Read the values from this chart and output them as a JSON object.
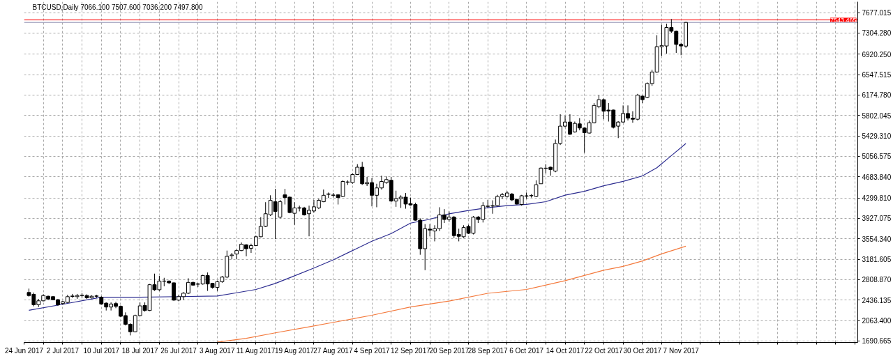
{
  "chart_data": {
    "type": "candlestick",
    "title": "BTCUSD,Daily 7066.100 7507.600 7036.200 7497.800",
    "x": [
      "2017-06-25",
      "2017-06-26",
      "2017-06-27",
      "2017-06-28",
      "2017-06-29",
      "2017-06-30",
      "2017-07-01",
      "2017-07-02",
      "2017-07-03",
      "2017-07-04",
      "2017-07-05",
      "2017-07-06",
      "2017-07-07",
      "2017-07-08",
      "2017-07-09",
      "2017-07-10",
      "2017-07-11",
      "2017-07-12",
      "2017-07-13",
      "2017-07-14",
      "2017-07-15",
      "2017-07-16",
      "2017-07-17",
      "2017-07-18",
      "2017-07-19",
      "2017-07-20",
      "2017-07-21",
      "2017-07-22",
      "2017-07-23",
      "2017-07-24",
      "2017-07-25",
      "2017-07-26",
      "2017-07-27",
      "2017-07-28",
      "2017-07-29",
      "2017-07-30",
      "2017-07-31",
      "2017-08-01",
      "2017-08-02",
      "2017-08-03",
      "2017-08-04",
      "2017-08-05",
      "2017-08-06",
      "2017-08-07",
      "2017-08-08",
      "2017-08-09",
      "2017-08-10",
      "2017-08-11",
      "2017-08-12",
      "2017-08-13",
      "2017-08-14",
      "2017-08-15",
      "2017-08-16",
      "2017-08-17",
      "2017-08-18",
      "2017-08-19",
      "2017-08-20",
      "2017-08-21",
      "2017-08-22",
      "2017-08-23",
      "2017-08-24",
      "2017-08-25",
      "2017-08-26",
      "2017-08-27",
      "2017-08-28",
      "2017-08-29",
      "2017-08-30",
      "2017-08-31",
      "2017-09-01",
      "2017-09-02",
      "2017-09-03",
      "2017-09-04",
      "2017-09-05",
      "2017-09-06",
      "2017-09-07",
      "2017-09-08",
      "2017-09-09",
      "2017-09-10",
      "2017-09-11",
      "2017-09-12",
      "2017-09-13",
      "2017-09-14",
      "2017-09-15",
      "2017-09-16",
      "2017-09-17",
      "2017-09-18",
      "2017-09-19",
      "2017-09-20",
      "2017-09-21",
      "2017-09-22",
      "2017-09-23",
      "2017-09-24",
      "2017-09-25",
      "2017-09-26",
      "2017-09-27",
      "2017-09-28",
      "2017-09-29",
      "2017-09-30",
      "2017-10-01",
      "2017-10-02",
      "2017-10-03",
      "2017-10-04",
      "2017-10-05",
      "2017-10-06",
      "2017-10-07",
      "2017-10-08",
      "2017-10-09",
      "2017-10-10",
      "2017-10-11",
      "2017-10-12",
      "2017-10-13",
      "2017-10-14",
      "2017-10-15",
      "2017-10-16",
      "2017-10-17",
      "2017-10-18",
      "2017-10-19",
      "2017-10-20",
      "2017-10-21",
      "2017-10-22",
      "2017-10-23",
      "2017-10-24",
      "2017-10-25",
      "2017-10-26",
      "2017-10-27",
      "2017-10-28",
      "2017-10-29",
      "2017-10-30",
      "2017-10-31",
      "2017-11-01",
      "2017-11-02",
      "2017-11-03",
      "2017-11-04",
      "2017-11-05",
      "2017-11-06",
      "2017-11-07",
      "2017-11-08"
    ],
    "ohlc": [
      [
        2575,
        2646,
        2499,
        2520
      ],
      [
        2541,
        2574,
        2323,
        2352
      ],
      [
        2352,
        2457,
        2310,
        2423
      ],
      [
        2423,
        2541,
        2415,
        2520
      ],
      [
        2507,
        2516,
        2436,
        2457
      ],
      [
        2499,
        2507,
        2436,
        2444
      ],
      [
        2444,
        2457,
        2331,
        2352
      ],
      [
        2373,
        2423,
        2352,
        2407
      ],
      [
        2394,
        2532,
        2385,
        2499
      ],
      [
        2503,
        2549,
        2478,
        2511
      ],
      [
        2499,
        2549,
        2457,
        2520
      ],
      [
        2520,
        2562,
        2478,
        2524
      ],
      [
        2520,
        2541,
        2457,
        2478
      ],
      [
        2478,
        2524,
        2465,
        2507
      ],
      [
        2512,
        2532,
        2478,
        2507
      ],
      [
        2490,
        2507,
        2352,
        2365
      ],
      [
        2381,
        2394,
        2247,
        2310
      ],
      [
        2310,
        2394,
        2247,
        2365
      ],
      [
        2373,
        2407,
        2289,
        2323
      ],
      [
        2323,
        2339,
        2129,
        2142
      ],
      [
        2154,
        2213,
        1974,
        1995
      ],
      [
        1995,
        2016,
        1793,
        1860
      ],
      [
        1860,
        2171,
        1848,
        2154
      ],
      [
        2154,
        2394,
        2142,
        2331
      ],
      [
        2339,
        2394,
        2226,
        2247
      ],
      [
        2247,
        2730,
        2238,
        2717
      ],
      [
        2717,
        2919,
        2604,
        2625
      ],
      [
        2625,
        2877,
        2604,
        2784
      ],
      [
        2784,
        2843,
        2688,
        2780
      ],
      [
        2784,
        2793,
        2730,
        2751
      ],
      [
        2751,
        2759,
        2423,
        2436
      ],
      [
        2436,
        2532,
        2415,
        2499
      ],
      [
        2499,
        2583,
        2436,
        2562
      ],
      [
        2562,
        2835,
        2549,
        2759
      ],
      [
        2759,
        2772,
        2700,
        2709
      ],
      [
        2730,
        2751,
        2675,
        2726
      ],
      [
        2730,
        2898,
        2717,
        2885
      ],
      [
        2885,
        2940,
        2604,
        2730
      ],
      [
        2742,
        2751,
        2646,
        2667
      ],
      [
        2667,
        2793,
        2604,
        2772
      ],
      [
        2772,
        2877,
        2751,
        2856
      ],
      [
        2856,
        3339,
        2835,
        3234
      ],
      [
        3247,
        3297,
        3179,
        3259
      ],
      [
        3276,
        3360,
        3179,
        3339
      ],
      [
        3339,
        3486,
        3330,
        3456
      ],
      [
        3444,
        3456,
        3234,
        3373
      ],
      [
        3381,
        3465,
        3297,
        3431
      ],
      [
        3431,
        3612,
        3423,
        3591
      ],
      [
        3591,
        3948,
        3583,
        3780
      ],
      [
        3780,
        4221,
        3767,
        4011
      ],
      [
        3990,
        4347,
        3969,
        4254
      ],
      [
        4229,
        4464,
        3549,
        4053
      ],
      [
        3948,
        4263,
        3927,
        4229
      ],
      [
        4355,
        4464,
        4179,
        4305
      ],
      [
        4313,
        4326,
        4019,
        4032
      ],
      [
        4019,
        4221,
        3809,
        4116
      ],
      [
        4120,
        4158,
        4053,
        4112
      ],
      [
        4116,
        4137,
        3977,
        3990
      ],
      [
        4011,
        4158,
        3599,
        4074
      ],
      [
        4061,
        4263,
        4032,
        4137
      ],
      [
        4116,
        4284,
        4095,
        4255
      ],
      [
        4229,
        4452,
        4221,
        4347
      ],
      [
        4364,
        4397,
        4297,
        4372
      ],
      [
        4347,
        4389,
        4305,
        4351
      ],
      [
        4355,
        4368,
        4179,
        4305
      ],
      [
        4326,
        4620,
        4313,
        4599
      ],
      [
        4586,
        4620,
        4536,
        4590
      ],
      [
        4578,
        4746,
        4557,
        4725
      ],
      [
        4725,
        4914,
        4717,
        4859
      ],
      [
        4859,
        4956,
        4536,
        4557
      ],
      [
        4557,
        4683,
        4515,
        4578
      ],
      [
        4578,
        4662,
        4145,
        4347
      ],
      [
        4347,
        4557,
        4129,
        4481
      ],
      [
        4481,
        4704,
        4452,
        4599
      ],
      [
        4578,
        4691,
        4557,
        4633
      ],
      [
        4620,
        4683,
        4221,
        4242
      ],
      [
        4242,
        4431,
        4137,
        4284
      ],
      [
        4284,
        4347,
        4116,
        4313
      ],
      [
        4313,
        4389,
        4103,
        4187
      ],
      [
        4196,
        4305,
        4158,
        4171
      ],
      [
        4179,
        4213,
        3885,
        3893
      ],
      [
        3893,
        3927,
        3263,
        3373
      ],
      [
        3373,
        3822,
        2982,
        3738
      ],
      [
        3730,
        3822,
        3599,
        3713
      ],
      [
        3696,
        3801,
        3507,
        3738
      ],
      [
        3738,
        4129,
        3696,
        3990
      ],
      [
        3990,
        4095,
        3843,
        3906
      ],
      [
        3906,
        4053,
        3864,
        3948
      ],
      [
        3948,
        3969,
        3570,
        3612
      ],
      [
        3633,
        3738,
        3507,
        3599
      ],
      [
        3591,
        3801,
        3570,
        3759
      ],
      [
        3780,
        3809,
        3641,
        3654
      ],
      [
        3654,
        3969,
        3633,
        3948
      ],
      [
        3948,
        3969,
        3843,
        3906
      ],
      [
        3906,
        4221,
        3851,
        4158
      ],
      [
        4145,
        4263,
        4116,
        4150
      ],
      [
        4158,
        4255,
        4011,
        4150
      ],
      [
        4158,
        4355,
        4145,
        4326
      ],
      [
        4326,
        4389,
        4280,
        4360
      ],
      [
        4326,
        4422,
        4305,
        4389
      ],
      [
        4368,
        4389,
        4242,
        4263
      ],
      [
        4271,
        4284,
        4179,
        4187
      ],
      [
        4179,
        4355,
        4158,
        4339
      ],
      [
        4330,
        4397,
        4284,
        4338
      ],
      [
        4338,
        4368,
        4305,
        4343
      ],
      [
        4326,
        4620,
        4313,
        4540
      ],
      [
        4557,
        4859,
        4557,
        4842
      ],
      [
        4842,
        4914,
        4746,
        4838
      ],
      [
        4859,
        4872,
        4704,
        4817
      ],
      [
        4788,
        5363,
        4767,
        5292
      ],
      [
        5292,
        5825,
        5263,
        5607
      ],
      [
        5607,
        5796,
        5586,
        5682
      ],
      [
        5682,
        5825,
        5447,
        5460
      ],
      [
        5502,
        5691,
        5489,
        5657
      ],
      [
        5649,
        5754,
        5531,
        5573
      ],
      [
        5573,
        5586,
        5124,
        5489
      ],
      [
        5481,
        5712,
        5473,
        5670
      ],
      [
        5670,
        6027,
        5657,
        5985
      ],
      [
        5964,
        6174,
        5934,
        6090
      ],
      [
        6090,
        6111,
        5733,
        5880
      ],
      [
        5900,
        6027,
        5691,
        5884
      ],
      [
        5901,
        5909,
        5565,
        5586
      ],
      [
        5607,
        5699,
        5389,
        5682
      ],
      [
        5682,
        5985,
        5670,
        5838
      ],
      [
        5838,
        5985,
        5712,
        5754
      ],
      [
        5754,
        5880,
        5670,
        5733
      ],
      [
        5733,
        6195,
        5712,
        6174
      ],
      [
        6153,
        6174,
        6027,
        6090
      ],
      [
        6132,
        6405,
        6119,
        6384
      ],
      [
        6384,
        6636,
        6342,
        6594
      ],
      [
        6594,
        7266,
        6581,
        7056
      ],
      [
        7056,
        7455,
        6888,
        7077
      ],
      [
        7068,
        7476,
        6930,
        7405
      ],
      [
        7405,
        7560,
        7308,
        7337
      ],
      [
        7337,
        7350,
        6942,
        7098
      ],
      [
        7098,
        7127,
        6900,
        7068
      ],
      [
        7066.1,
        7507.6,
        7036.2,
        7497.8
      ]
    ],
    "series": [
      {
        "type": "line",
        "color": "#2b2b8f",
        "x": [
          "2017-06-25",
          "2017-07-02",
          "2017-07-10",
          "2017-07-18",
          "2017-07-26",
          "2017-08-03",
          "2017-08-07",
          "2017-08-11",
          "2017-08-15",
          "2017-08-19",
          "2017-08-23",
          "2017-08-27",
          "2017-08-31",
          "2017-09-04",
          "2017-09-08",
          "2017-09-12",
          "2017-09-16",
          "2017-09-20",
          "2017-09-24",
          "2017-09-28",
          "2017-10-02",
          "2017-10-06",
          "2017-10-10",
          "2017-10-14",
          "2017-10-18",
          "2017-10-22",
          "2017-10-26",
          "2017-10-30",
          "2017-11-02",
          "2017-11-05",
          "2017-11-08"
        ],
        "values": [
          2250,
          2360,
          2490,
          2490,
          2500,
          2510,
          2570,
          2630,
          2740,
          2880,
          3020,
          3170,
          3340,
          3510,
          3650,
          3840,
          3910,
          4010,
          4070,
          4120,
          4160,
          4180,
          4230,
          4350,
          4420,
          4520,
          4600,
          4700,
          4850,
          5070,
          5290
        ]
      },
      {
        "type": "line",
        "color": "#f47a3d",
        "x": [
          "2017-08-03",
          "2017-08-09",
          "2017-08-15",
          "2017-08-22",
          "2017-08-27",
          "2017-09-04",
          "2017-09-12",
          "2017-09-20",
          "2017-09-28",
          "2017-10-06",
          "2017-10-14",
          "2017-10-22",
          "2017-10-26",
          "2017-10-30",
          "2017-11-03",
          "2017-11-08"
        ],
        "values": [
          1670,
          1740,
          1840,
          1950,
          2030,
          2160,
          2310,
          2420,
          2560,
          2630,
          2790,
          2980,
          3050,
          3150,
          3280,
          3420
        ]
      }
    ],
    "xlim": [
      "2017-06-24",
      "2017-12-13T14:00"
    ],
    "xticks": [
      {
        "value": "2017-06-24",
        "label": "24 Jun 2017"
      },
      {
        "value": "2017-06-28",
        "label": null
      },
      {
        "value": "2017-07-02",
        "label": "2 Jul 2017"
      },
      {
        "value": "2017-07-06",
        "label": null
      },
      {
        "value": "2017-07-10",
        "label": "10 Jul 2017"
      },
      {
        "value": "2017-07-14",
        "label": null
      },
      {
        "value": "2017-07-18",
        "label": "18 Jul 2017"
      },
      {
        "value": "2017-07-22",
        "label": null
      },
      {
        "value": "2017-07-26",
        "label": "26 Jul 2017"
      },
      {
        "value": "2017-07-30",
        "label": null
      },
      {
        "value": "2017-08-03",
        "label": "3 Aug 2017"
      },
      {
        "value": "2017-08-07",
        "label": null
      },
      {
        "value": "2017-08-11",
        "label": "11 Aug 2017"
      },
      {
        "value": "2017-08-15",
        "label": null
      },
      {
        "value": "2017-08-19",
        "label": "19 Aug 2017"
      },
      {
        "value": "2017-08-23",
        "label": null
      },
      {
        "value": "2017-08-27",
        "label": "27 Aug 2017"
      },
      {
        "value": "2017-08-31",
        "label": null
      },
      {
        "value": "2017-09-04",
        "label": "4 Sep 2017"
      },
      {
        "value": "2017-09-08",
        "label": null
      },
      {
        "value": "2017-09-12",
        "label": "12 Sep 2017"
      },
      {
        "value": "2017-09-16",
        "label": null
      },
      {
        "value": "2017-09-20",
        "label": "20 Sep 2017"
      },
      {
        "value": "2017-09-24",
        "label": null
      },
      {
        "value": "2017-09-28",
        "label": "28 Sep 2017"
      },
      {
        "value": "2017-10-02",
        "label": null
      },
      {
        "value": "2017-10-06",
        "label": "6 Oct 2017"
      },
      {
        "value": "2017-10-10",
        "label": null
      },
      {
        "value": "2017-10-14",
        "label": "14 Oct 2017"
      },
      {
        "value": "2017-10-18",
        "label": null
      },
      {
        "value": "2017-10-22",
        "label": "22 Oct 2017"
      },
      {
        "value": "2017-10-26",
        "label": null
      },
      {
        "value": "2017-10-30",
        "label": "30 Oct 2017"
      },
      {
        "value": "2017-11-03",
        "label": null
      },
      {
        "value": "2017-11-07",
        "label": "7 Nov 2017"
      },
      {
        "value": "2017-11-11",
        "label": null
      },
      {
        "value": "2017-11-15",
        "label": null
      },
      {
        "value": "2017-11-19",
        "label": null
      },
      {
        "value": "2017-11-23",
        "label": null
      },
      {
        "value": "2017-11-27",
        "label": null
      },
      {
        "value": "2017-12-01",
        "label": null
      },
      {
        "value": "2017-12-05",
        "label": null
      },
      {
        "value": "2017-12-09",
        "label": null
      },
      {
        "value": "2017-12-13",
        "label": null
      }
    ],
    "ylim": [
      1665,
      7875
    ],
    "yticks": [
      {
        "value": 1690.665,
        "label": "1690.665"
      },
      {
        "value": 2063.4,
        "label": "2063.400"
      },
      {
        "value": 2436.135,
        "label": "2436.135"
      },
      {
        "value": 2808.87,
        "label": "2808.870"
      },
      {
        "value": 3181.605,
        "label": "3181.605"
      },
      {
        "value": 3554.34,
        "label": "3554.340"
      },
      {
        "value": 3927.075,
        "label": "3927.075"
      },
      {
        "value": 4299.81,
        "label": "4299.810"
      },
      {
        "value": 4683.84,
        "label": "4683.840"
      },
      {
        "value": 5056.575,
        "label": "5056.575"
      },
      {
        "value": 5429.31,
        "label": "5429.310"
      },
      {
        "value": 5802.045,
        "label": "5802.045"
      },
      {
        "value": 6174.78,
        "label": "6174.780"
      },
      {
        "value": 6547.515,
        "label": "6547.515"
      },
      {
        "value": 6920.25,
        "label": "6920.250"
      },
      {
        "value": 7304.28,
        "label": "7304.280"
      },
      {
        "value": 7677.015,
        "label": "7677.015"
      }
    ],
    "ref_lines": [
      {
        "axis": "y",
        "value": 7543.465,
        "label": "7543.465",
        "color": "#ff0000"
      },
      {
        "axis": "y",
        "value": 7497.8,
        "color": "#8c8cae"
      }
    ],
    "grid": true
  }
}
